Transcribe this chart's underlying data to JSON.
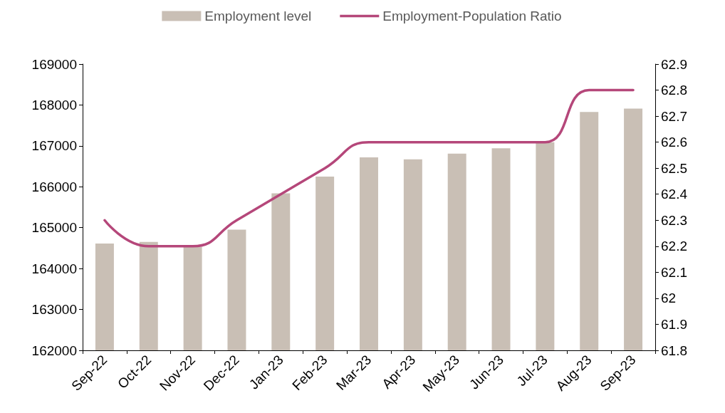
{
  "chart_data": {
    "type": "bar",
    "categories": [
      "Sep-22",
      "Oct-22",
      "Nov-22",
      "Dec-22",
      "Jan-23",
      "Feb-23",
      "Mar-23",
      "Apr-23",
      "May-23",
      "Jun-23",
      "Jul-23",
      "Aug-23",
      "Sep-23"
    ],
    "series": [
      {
        "name": "Employment level",
        "color": "#c9bfb5",
        "values": [
          164610,
          164650,
          164530,
          164950,
          165840,
          166250,
          166720,
          166670,
          166810,
          166940,
          167090,
          167830,
          167910
        ]
      },
      {
        "name": "Employment-Population Ratio",
        "type": "line",
        "axis": "y2",
        "color": "#b5477a",
        "values": [
          62.3,
          62.2,
          62.2,
          62.3,
          62.4,
          62.5,
          62.6,
          62.6,
          62.6,
          62.6,
          62.6,
          62.8,
          62.8
        ]
      }
    ],
    "ylim": [
      162000,
      169000
    ],
    "yticks": [
      162000,
      163000,
      164000,
      165000,
      166000,
      167000,
      168000,
      169000
    ],
    "y2lim": [
      61.8,
      62.9
    ],
    "y2ticks": [
      61.8,
      61.9,
      62,
      62.1,
      62.2,
      62.3,
      62.4,
      62.5,
      62.6,
      62.7,
      62.8,
      62.9
    ],
    "grid": false,
    "legend": "top",
    "marker": "none",
    "line_style": "solid"
  }
}
